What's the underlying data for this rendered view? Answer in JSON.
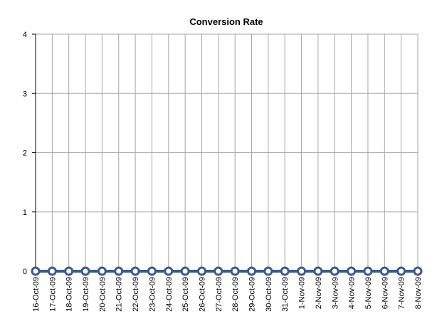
{
  "chart_data": {
    "type": "line",
    "title": "Conversion Rate",
    "xlabel": "",
    "ylabel": "",
    "ylim": [
      0,
      4
    ],
    "yticks": [
      0,
      1,
      2,
      3,
      4
    ],
    "grid": true,
    "legend": "none",
    "categories": [
      "16-Oct-09",
      "17-Oct-09",
      "18-Oct-09",
      "19-Oct-09",
      "20-Oct-09",
      "21-Oct-09",
      "22-Oct-09",
      "23-Oct-09",
      "24-Oct-09",
      "25-Oct-09",
      "26-Oct-09",
      "27-Oct-09",
      "28-Oct-09",
      "29-Oct-09",
      "30-Oct-09",
      "31-Oct-09",
      "1-Nov-09",
      "2-Nov-09",
      "3-Nov-09",
      "4-Nov-09",
      "5-Nov-09",
      "6-Nov-09",
      "7-Nov-09",
      "8-Nov-09"
    ],
    "series": [
      {
        "values": [
          0,
          0,
          0,
          0,
          0,
          0,
          0,
          0,
          0,
          0,
          0,
          0,
          0,
          0,
          0,
          0,
          0,
          0,
          0,
          0,
          0,
          0,
          0,
          0
        ],
        "color": "#3c5a88"
      }
    ],
    "colors": {
      "grid": "#a6a6a6",
      "axis": "#000000",
      "marker_fill": "#ffffff"
    }
  }
}
